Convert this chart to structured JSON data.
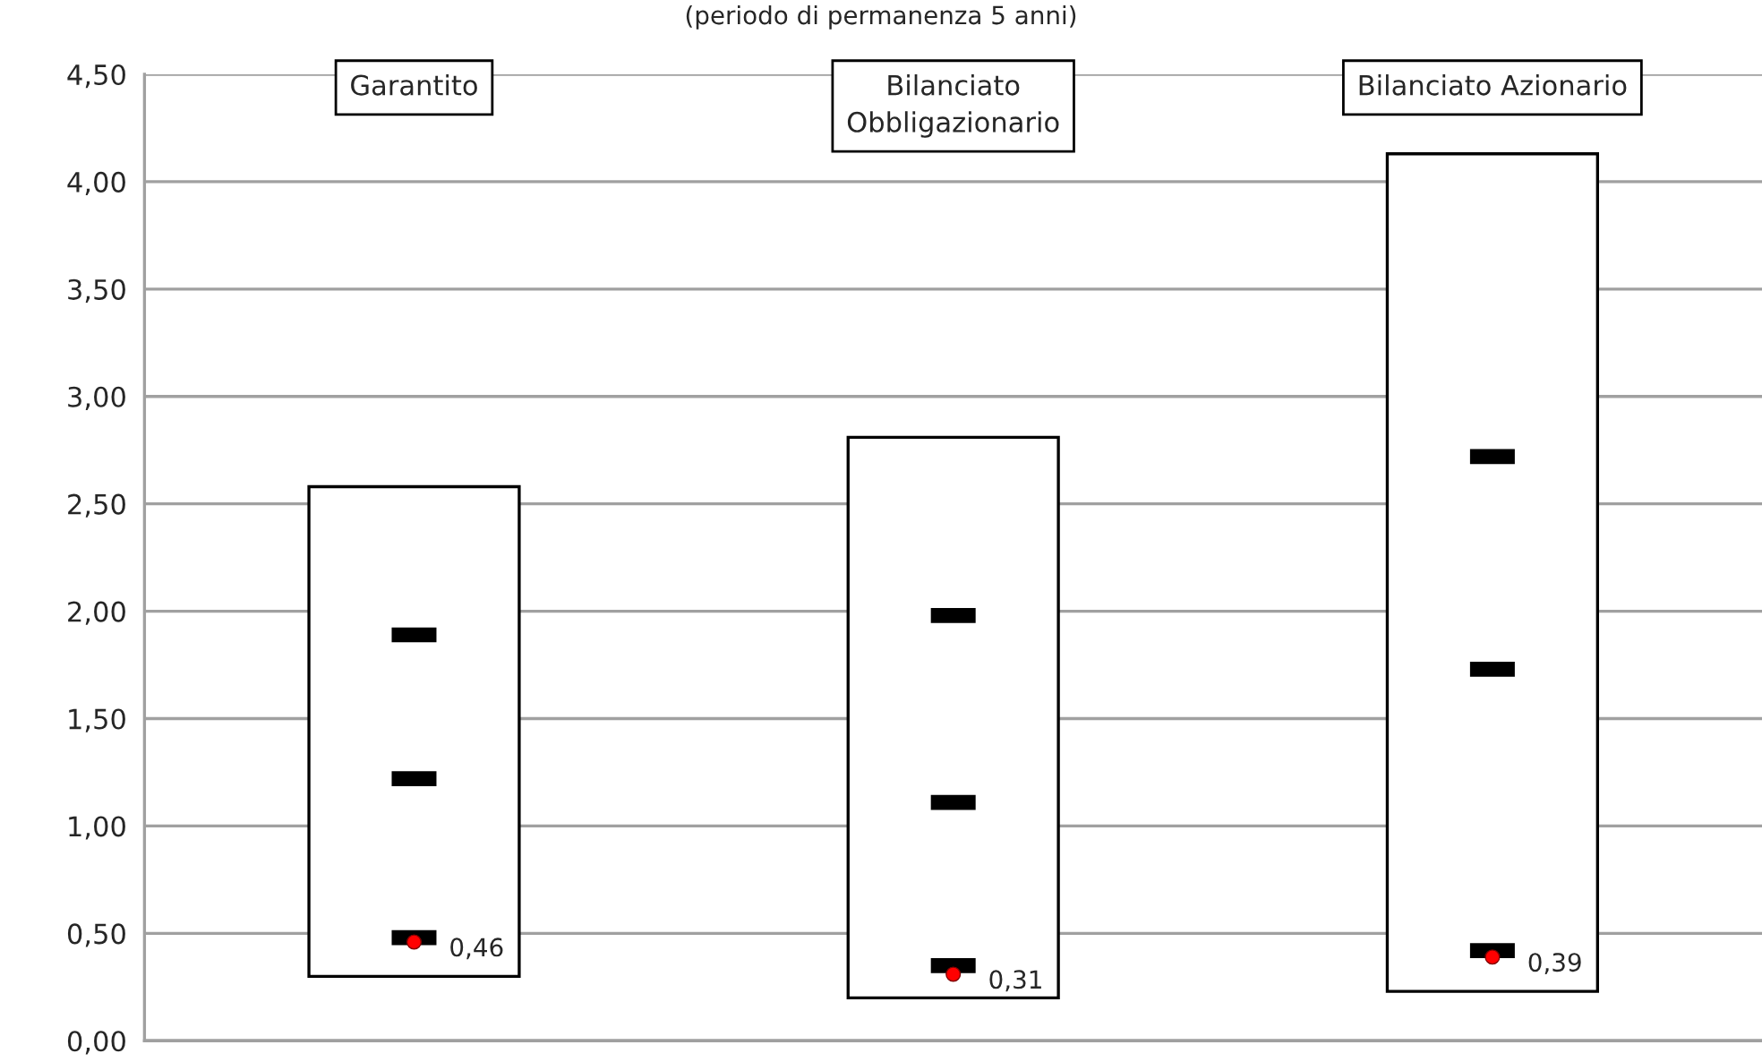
{
  "chart_data": {
    "type": "bar",
    "subtitle": "(periodo di permanenza 5 anni)",
    "categories": [
      "Garantito",
      "Bilanciato\nObbligazionario",
      "Bilanciato Azionario"
    ],
    "ylim": [
      0,
      4.5
    ],
    "yticks": [
      {
        "value": 0,
        "label": "0,00"
      },
      {
        "value": 0.5,
        "label": "0,50"
      },
      {
        "value": 1,
        "label": "1,00"
      },
      {
        "value": 1.5,
        "label": "1,50"
      },
      {
        "value": 2,
        "label": "2,00"
      },
      {
        "value": 2.5,
        "label": "2,50"
      },
      {
        "value": 3,
        "label": "3,00"
      },
      {
        "value": 3.5,
        "label": "3,50"
      },
      {
        "value": 4,
        "label": "4,00"
      },
      {
        "value": 4.5,
        "label": "4,50"
      }
    ],
    "grid": "y",
    "series": [
      {
        "color": "#ffffff",
        "base": [
          0.3,
          0.2,
          0.23
        ],
        "values": [
          2.28,
          2.61,
          3.9
        ]
      },
      {
        "type": "scatter",
        "marker": "square",
        "color": "#000000",
        "values": [
          1.89,
          1.98,
          2.72
        ]
      },
      {
        "type": "scatter",
        "marker": "square",
        "color": "#000000",
        "values": [
          1.22,
          1.11,
          1.73
        ]
      },
      {
        "type": "scatter",
        "marker": "square",
        "color": "#000000",
        "values": [
          0.48,
          0.35,
          0.42
        ]
      },
      {
        "type": "scatter",
        "marker": "circle",
        "color": "#ff0000",
        "values": [
          0.46,
          0.31,
          0.39
        ],
        "value_labels": [
          "0,46",
          "0,31",
          "0,39"
        ]
      }
    ]
  }
}
